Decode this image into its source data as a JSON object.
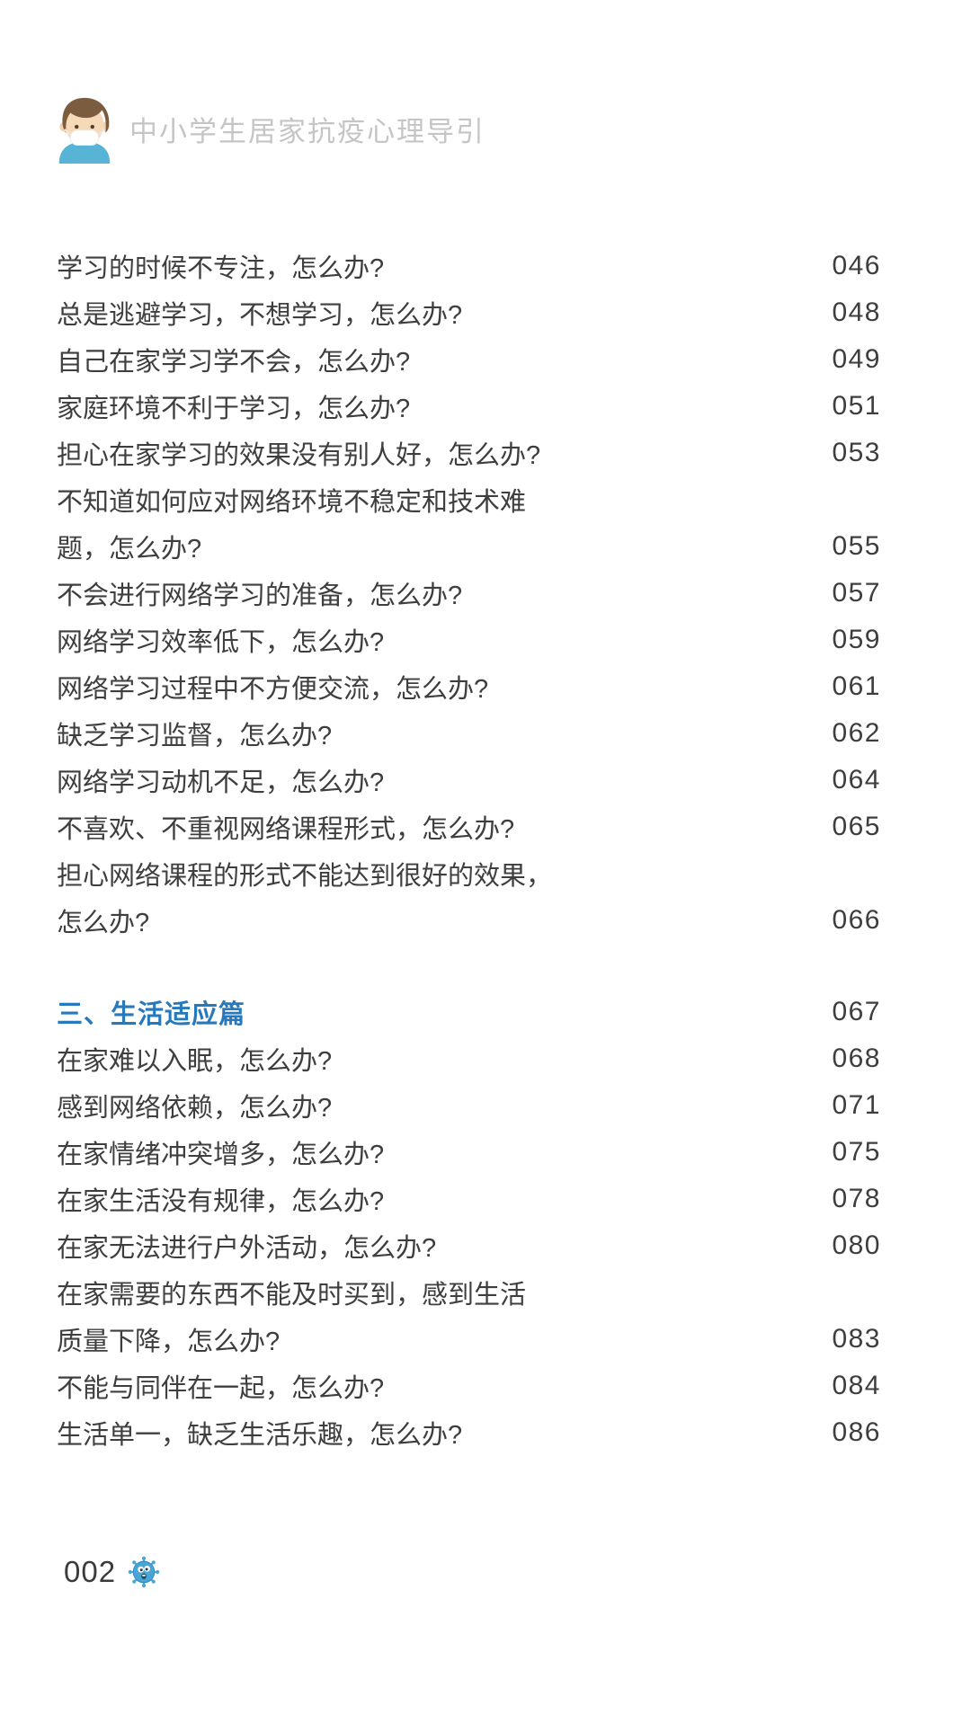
{
  "colors": {
    "accent_blue": "#2779bd",
    "body_text": "#3e3e3e",
    "header_title_gray": "#c5c5c5",
    "virus_blue": "#49a5d8",
    "avatar_shirt_blue": "#57b4d5"
  },
  "header": {
    "title": "中小学生居家抗疫心理导引",
    "icon": "masked-student-avatar-icon"
  },
  "toc": {
    "items": [
      {
        "type": "entry",
        "lines": [
          "学习的时候不专注，怎么办?"
        ],
        "page": "046"
      },
      {
        "type": "entry",
        "lines": [
          "总是逃避学习，不想学习，怎么办?"
        ],
        "page": "048"
      },
      {
        "type": "entry",
        "lines": [
          "自己在家学习学不会，怎么办?"
        ],
        "page": "049"
      },
      {
        "type": "entry",
        "lines": [
          "家庭环境不利于学习，怎么办?"
        ],
        "page": "051"
      },
      {
        "type": "entry",
        "lines": [
          "担心在家学习的效果没有别人好，怎么办?"
        ],
        "page": "053"
      },
      {
        "type": "entry",
        "lines": [
          "不知道如何应对网络环境不稳定和技术难",
          "题，怎么办?"
        ],
        "page": "055"
      },
      {
        "type": "entry",
        "lines": [
          "不会进行网络学习的准备，怎么办?"
        ],
        "page": "057"
      },
      {
        "type": "entry",
        "lines": [
          "网络学习效率低下，怎么办?"
        ],
        "page": "059"
      },
      {
        "type": "entry",
        "lines": [
          "网络学习过程中不方便交流，怎么办?"
        ],
        "page": "061"
      },
      {
        "type": "entry",
        "lines": [
          "缺乏学习监督，怎么办?"
        ],
        "page": "062"
      },
      {
        "type": "entry",
        "lines": [
          "网络学习动机不足，怎么办?"
        ],
        "page": "064"
      },
      {
        "type": "entry",
        "lines": [
          "不喜欢、不重视网络课程形式，怎么办?"
        ],
        "page": "065"
      },
      {
        "type": "entry",
        "lines": [
          "担心网络课程的形式不能达到很好的效果，",
          "怎么办?"
        ],
        "page": "066"
      },
      {
        "type": "gap"
      },
      {
        "type": "section",
        "lines": [
          "三、生活适应篇"
        ],
        "page": "067"
      },
      {
        "type": "entry",
        "lines": [
          "在家难以入眠，怎么办?"
        ],
        "page": "068"
      },
      {
        "type": "entry",
        "lines": [
          "感到网络依赖，怎么办?"
        ],
        "page": "071"
      },
      {
        "type": "entry",
        "lines": [
          "在家情绪冲突增多，怎么办?"
        ],
        "page": "075"
      },
      {
        "type": "entry",
        "lines": [
          "在家生活没有规律，怎么办?"
        ],
        "page": "078"
      },
      {
        "type": "entry",
        "lines": [
          "在家无法进行户外活动，怎么办?"
        ],
        "page": "080"
      },
      {
        "type": "entry",
        "lines": [
          "在家需要的东西不能及时买到，感到生活",
          "质量下降，怎么办?"
        ],
        "page": "083"
      },
      {
        "type": "entry",
        "lines": [
          "不能与同伴在一起，怎么办?"
        ],
        "page": "084"
      },
      {
        "type": "entry",
        "lines": [
          "生活单一，缺乏生活乐趣，怎么办?"
        ],
        "page": "086"
      }
    ]
  },
  "footer": {
    "page_number": "002",
    "icon": "virus-icon"
  }
}
